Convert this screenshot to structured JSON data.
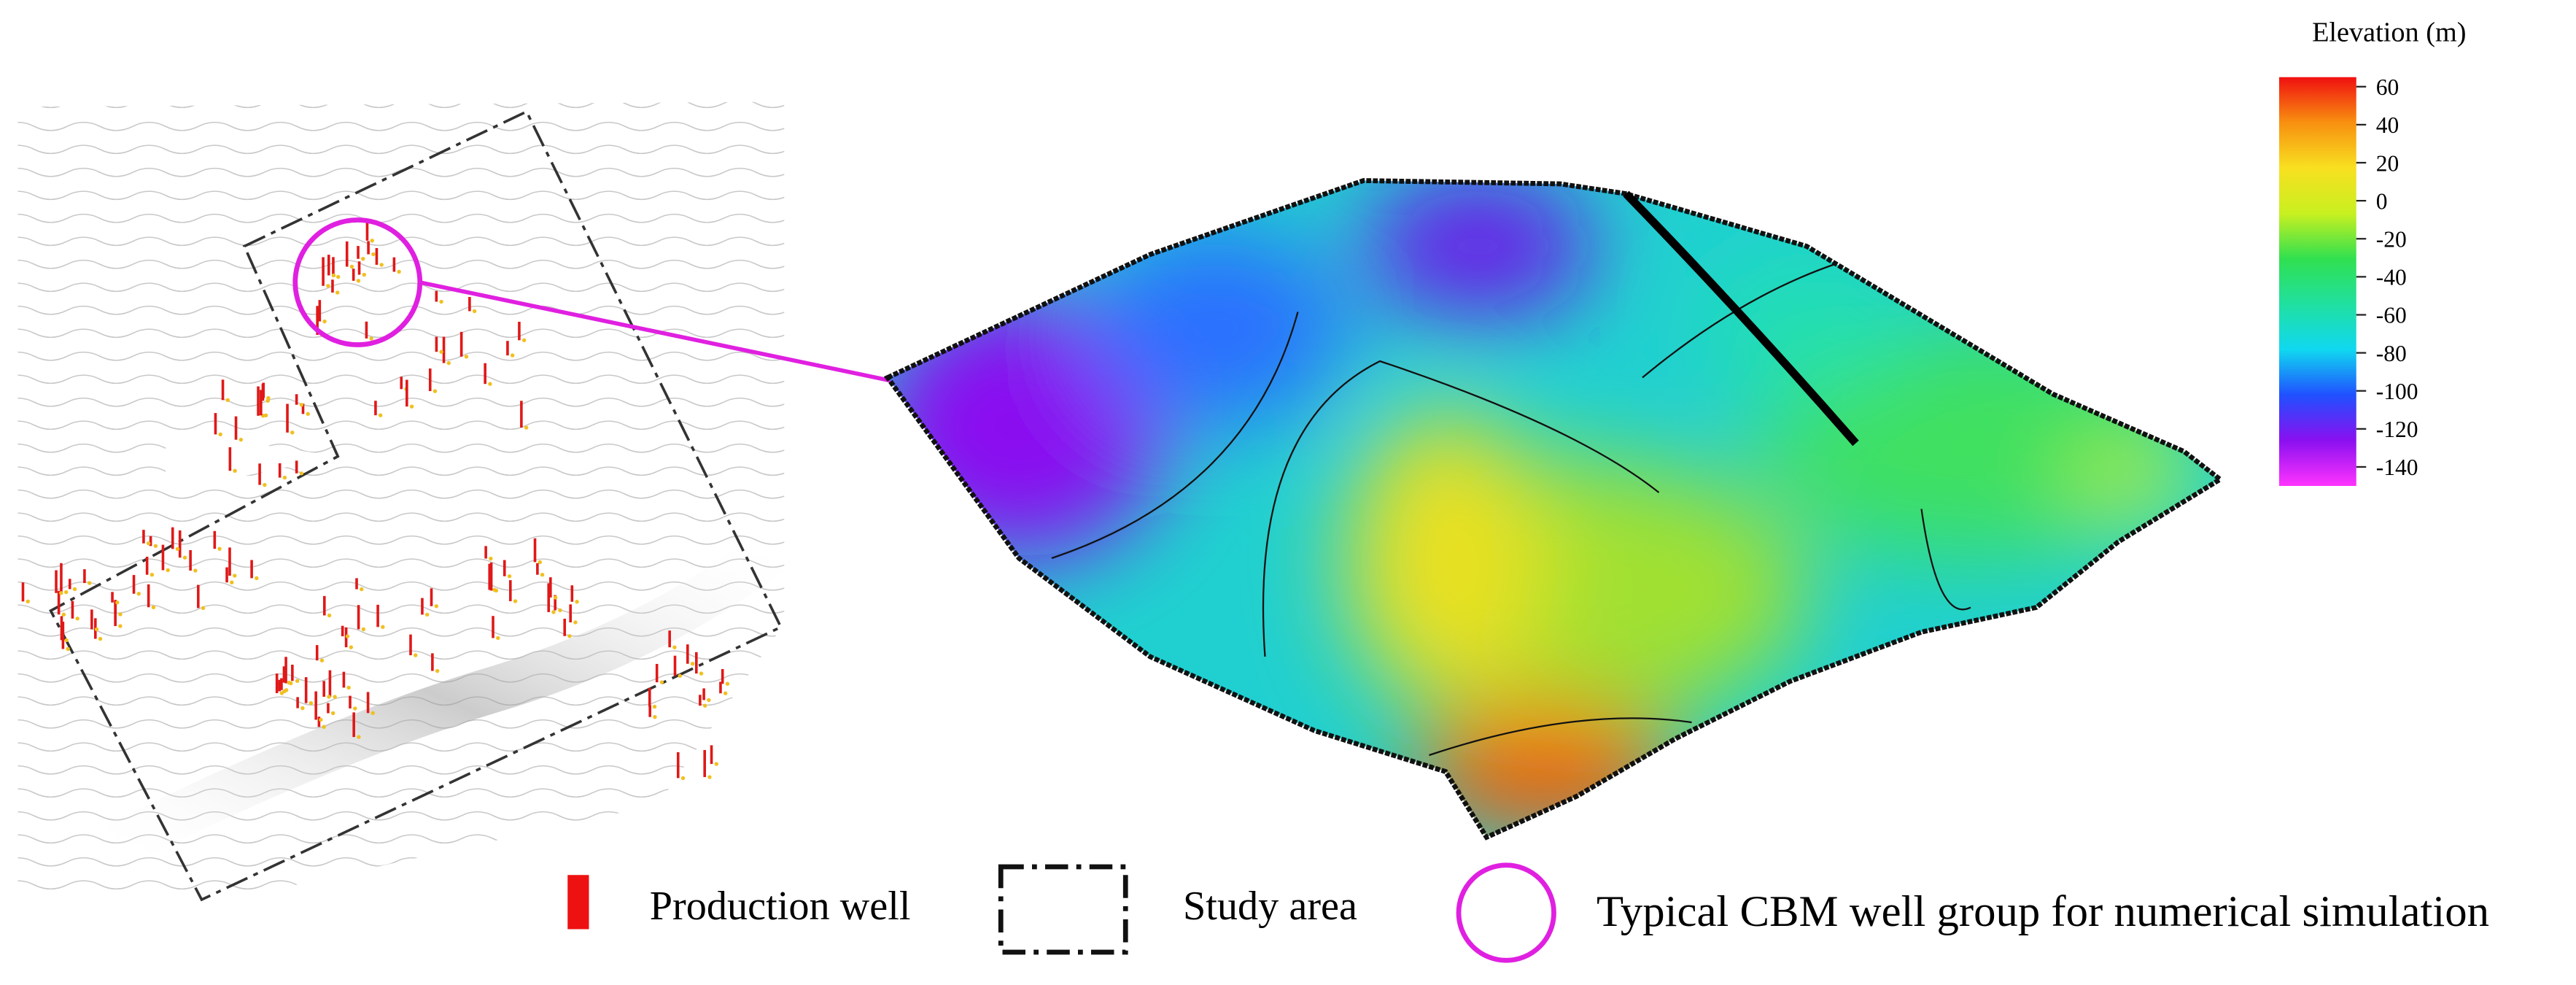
{
  "colorbar": {
    "title": "Elevation (m)",
    "ticks": [
      60,
      40,
      20,
      0,
      -20,
      -40,
      -60,
      -80,
      -100,
      -120,
      -140
    ],
    "range": [
      -150,
      65
    ],
    "colors": [
      "#ff33ff",
      "#8a10f0",
      "#2050ff",
      "#10d8f0",
      "#20e0a0",
      "#30e050",
      "#c8f020",
      "#f8e020",
      "#f89010",
      "#f01010"
    ]
  },
  "legend": [
    {
      "label": "Production well"
    },
    {
      "label": "Study area"
    },
    {
      "label": "Typical CBM well group for numerical simulation"
    }
  ]
}
